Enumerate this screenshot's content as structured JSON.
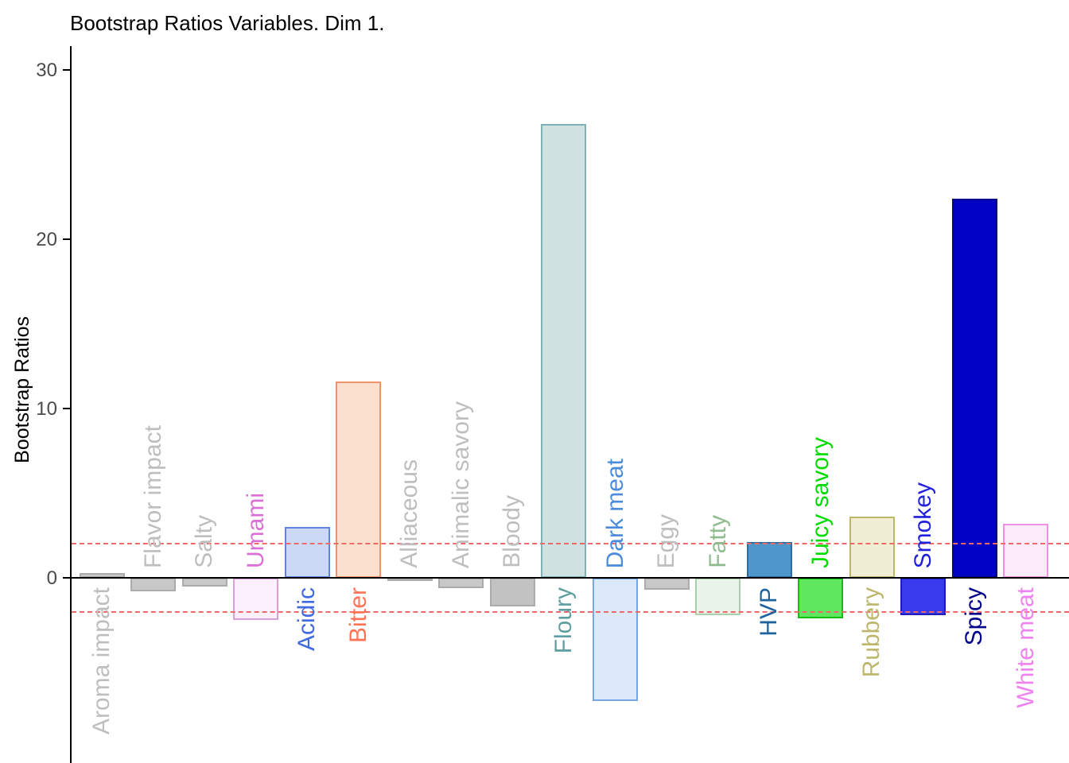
{
  "chart_data": {
    "type": "bar",
    "title": "Bootstrap Ratios Variables. Dim 1.",
    "ylabel": "Bootstrap Ratios",
    "y_ticks": [
      0,
      10,
      20,
      30
    ],
    "ylim": [
      -10.5,
      31.4
    ],
    "zero_line": 0,
    "threshold_lines": [
      2,
      -2
    ],
    "threshold_color": "#EE6A6A",
    "legend": "none",
    "grid": "off",
    "bars": [
      {
        "label": "Aroma impact",
        "value": 0.3,
        "fill": "#C8C8C8",
        "border": "#ABABAB",
        "label_color": "#BEBEBE"
      },
      {
        "label": "Flavor impact",
        "value": -0.8,
        "fill": "#C8C8C8",
        "border": "#ABABAB",
        "label_color": "#BEBEBE"
      },
      {
        "label": "Salty",
        "value": -0.5,
        "fill": "#C8C8C8",
        "border": "#ABABAB",
        "label_color": "#BEBEBE"
      },
      {
        "label": "Umami",
        "value": -2.5,
        "fill": "#FBF0FB",
        "border": "#D8A0D8",
        "label_color": "#DA70D6"
      },
      {
        "label": "Acidic",
        "value": 3.0,
        "fill": "#CBD9F5",
        "border": "#6384DE",
        "label_color": "#4169E1"
      },
      {
        "label": "Bitter",
        "value": 11.6,
        "fill": "#FAE0CD",
        "border": "#EE9468",
        "label_color": "#FF7256"
      },
      {
        "label": "Alliaceous",
        "value": -0.2,
        "fill": "#C8C8C8",
        "border": "#ABABAB",
        "label_color": "#BEBEBE"
      },
      {
        "label": "Animalic savory",
        "value": -0.6,
        "fill": "#C8C8C8",
        "border": "#ABABAB",
        "label_color": "#BEBEBE"
      },
      {
        "label": "Bloody",
        "value": -1.7,
        "fill": "#C2C2C2",
        "border": "#ABABAB",
        "label_color": "#BEBEBE"
      },
      {
        "label": "Floury",
        "value": 26.8,
        "fill": "#CFE1E1",
        "border": "#7FB2B4",
        "label_color": "#5F9EA0"
      },
      {
        "label": "Dark meat",
        "value": -7.3,
        "fill": "#DCE9FB",
        "border": "#77A5EC",
        "label_color": "#4A8CDB"
      },
      {
        "label": "Eggy",
        "value": -0.7,
        "fill": "#C8C8C8",
        "border": "#ABABAB",
        "label_color": "#BEBEBE"
      },
      {
        "label": "Fatty",
        "value": -2.2,
        "fill": "#EBF4EB",
        "border": "#ABCFAB",
        "label_color": "#8FBC8F"
      },
      {
        "label": "HVP",
        "value": 2.1,
        "fill": "#4E96CB",
        "border": "#2B6EA5",
        "label_color": "#1F639E"
      },
      {
        "label": "Juicy savory",
        "value": -2.4,
        "fill": "#5FE85F",
        "border": "#12BE12",
        "label_color": "#00DB00"
      },
      {
        "label": "Rubbery",
        "value": 3.6,
        "fill": "#F1EFD3",
        "border": "#BDB76B",
        "label_color": "#BDB76B"
      },
      {
        "label": "Smokey",
        "value": -2.2,
        "fill": "#3939EE",
        "border": "#1D1DBE",
        "label_color": "#2020DD"
      },
      {
        "label": "Spicy",
        "value": 22.4,
        "fill": "#0101C4",
        "border": "#00008B",
        "label_color": "#00008B"
      },
      {
        "label": "White meat",
        "value": 3.2,
        "fill": "#FCEBFA",
        "border": "#EE90E6",
        "label_color": "#EE82EE"
      }
    ]
  }
}
